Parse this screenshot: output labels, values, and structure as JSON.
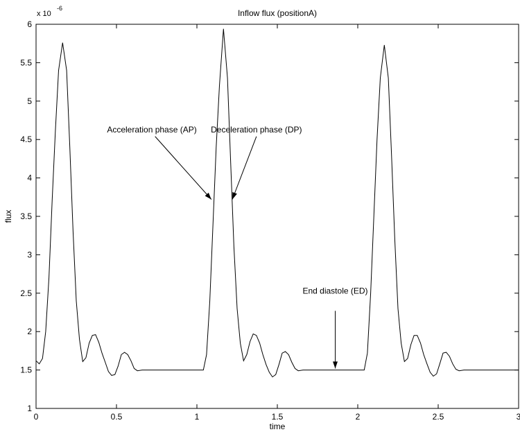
{
  "chart_data": {
    "type": "line",
    "title": "Inflow flux (positionA)",
    "xlabel": "time",
    "ylabel": "flux",
    "y_exponent_label": "x 10",
    "y_exponent_power": "-6",
    "xlim": [
      0,
      3
    ],
    "ylim": [
      1,
      6
    ],
    "grid": false,
    "xticks": [
      0,
      0.5,
      1,
      1.5,
      2,
      2.5,
      3
    ],
    "xtick_labels": [
      "0",
      "0.5",
      "1",
      "1.5",
      "2",
      "2.5",
      "3"
    ],
    "yticks": [
      1,
      1.5,
      2,
      2.5,
      3,
      3.5,
      4,
      4.5,
      5,
      5.5,
      6
    ],
    "ytick_labels": [
      "1",
      "1.5",
      "2",
      "2.5",
      "3",
      "3.5",
      "4",
      "4.5",
      "5",
      "5.5",
      "6"
    ],
    "series": [
      {
        "color": "#000000",
        "points": [
          [
            0.0,
            1.62
          ],
          [
            0.02,
            1.58
          ],
          [
            0.04,
            1.65
          ],
          [
            0.06,
            2.0
          ],
          [
            0.08,
            2.7
          ],
          [
            0.1,
            3.7
          ],
          [
            0.12,
            4.6
          ],
          [
            0.14,
            5.4
          ],
          [
            0.165,
            5.76
          ],
          [
            0.19,
            5.4
          ],
          [
            0.21,
            4.4
          ],
          [
            0.23,
            3.3
          ],
          [
            0.25,
            2.4
          ],
          [
            0.27,
            1.9
          ],
          [
            0.29,
            1.61
          ],
          [
            0.31,
            1.66
          ],
          [
            0.33,
            1.85
          ],
          [
            0.35,
            1.95
          ],
          [
            0.37,
            1.96
          ],
          [
            0.39,
            1.86
          ],
          [
            0.41,
            1.72
          ],
          [
            0.43,
            1.6
          ],
          [
            0.45,
            1.48
          ],
          [
            0.47,
            1.43
          ],
          [
            0.49,
            1.44
          ],
          [
            0.51,
            1.55
          ],
          [
            0.53,
            1.7
          ],
          [
            0.55,
            1.73
          ],
          [
            0.57,
            1.7
          ],
          [
            0.59,
            1.62
          ],
          [
            0.61,
            1.52
          ],
          [
            0.63,
            1.49
          ],
          [
            0.66,
            1.5
          ],
          [
            1.04,
            1.5
          ],
          [
            1.06,
            1.7
          ],
          [
            1.08,
            2.4
          ],
          [
            1.1,
            3.4
          ],
          [
            1.12,
            4.4
          ],
          [
            1.14,
            5.2
          ],
          [
            1.165,
            5.94
          ],
          [
            1.19,
            5.3
          ],
          [
            1.21,
            4.2
          ],
          [
            1.23,
            3.1
          ],
          [
            1.25,
            2.3
          ],
          [
            1.27,
            1.85
          ],
          [
            1.29,
            1.62
          ],
          [
            1.31,
            1.7
          ],
          [
            1.33,
            1.87
          ],
          [
            1.35,
            1.97
          ],
          [
            1.37,
            1.95
          ],
          [
            1.39,
            1.85
          ],
          [
            1.41,
            1.7
          ],
          [
            1.43,
            1.57
          ],
          [
            1.45,
            1.47
          ],
          [
            1.47,
            1.41
          ],
          [
            1.49,
            1.44
          ],
          [
            1.51,
            1.57
          ],
          [
            1.53,
            1.72
          ],
          [
            1.55,
            1.74
          ],
          [
            1.57,
            1.7
          ],
          [
            1.59,
            1.6
          ],
          [
            1.61,
            1.52
          ],
          [
            1.63,
            1.49
          ],
          [
            1.66,
            1.5
          ],
          [
            2.04,
            1.5
          ],
          [
            2.06,
            1.72
          ],
          [
            2.08,
            2.5
          ],
          [
            2.1,
            3.5
          ],
          [
            2.12,
            4.5
          ],
          [
            2.14,
            5.3
          ],
          [
            2.165,
            5.73
          ],
          [
            2.19,
            5.3
          ],
          [
            2.21,
            4.3
          ],
          [
            2.23,
            3.2
          ],
          [
            2.25,
            2.3
          ],
          [
            2.27,
            1.85
          ],
          [
            2.29,
            1.61
          ],
          [
            2.31,
            1.65
          ],
          [
            2.33,
            1.83
          ],
          [
            2.35,
            1.95
          ],
          [
            2.37,
            1.95
          ],
          [
            2.39,
            1.85
          ],
          [
            2.41,
            1.7
          ],
          [
            2.43,
            1.58
          ],
          [
            2.45,
            1.47
          ],
          [
            2.47,
            1.42
          ],
          [
            2.49,
            1.45
          ],
          [
            2.51,
            1.58
          ],
          [
            2.53,
            1.72
          ],
          [
            2.55,
            1.73
          ],
          [
            2.57,
            1.68
          ],
          [
            2.59,
            1.58
          ],
          [
            2.61,
            1.51
          ],
          [
            2.63,
            1.49
          ],
          [
            2.66,
            1.5
          ],
          [
            3.0,
            1.5
          ]
        ]
      }
    ],
    "annotations": [
      {
        "text": "Acceleration phase (AP)",
        "anchor": [
          0.72,
          4.54
        ],
        "arrow_from": [
          0.74,
          4.54
        ],
        "arrow_to": [
          1.09,
          3.72
        ]
      },
      {
        "text": "Deceleration phase (DP)",
        "anchor": [
          1.37,
          4.54
        ],
        "arrow_from": [
          1.37,
          4.54
        ],
        "arrow_to": [
          1.22,
          3.72
        ]
      },
      {
        "text": "End diastole (ED)",
        "anchor": [
          1.86,
          2.44
        ],
        "arrow_from": [
          1.86,
          2.27
        ],
        "arrow_to": [
          1.86,
          1.52
        ]
      }
    ]
  }
}
